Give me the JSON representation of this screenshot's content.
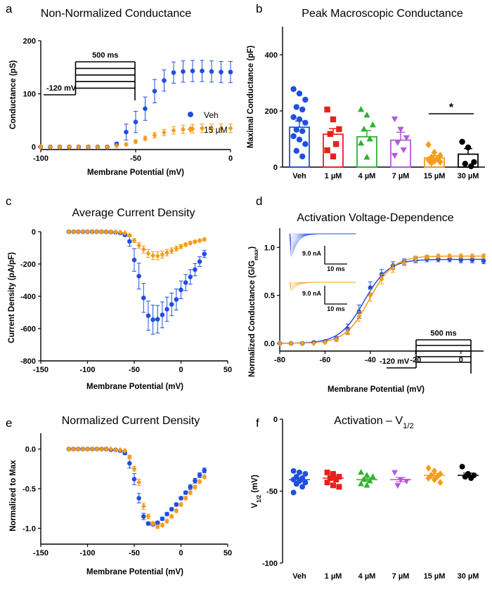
{
  "colors": {
    "veh": "#1f4fe0",
    "d15": "#f59c1a",
    "d1": "#e8201c",
    "d4": "#2db32d",
    "d7": "#b25adb",
    "d30": "#000000",
    "axis": "#000000"
  },
  "chart_data": [
    {
      "id": "a",
      "panel_label": "a",
      "type": "scatter",
      "title": "Non-Normalized Conductance",
      "xlabel": "Membrane Potential (mV)",
      "ylabel": "Conductance (pS)",
      "xlim": [
        -100,
        0
      ],
      "ylim": [
        -5,
        200
      ],
      "xticks": [
        -100,
        -50,
        0
      ],
      "yticks": [
        0,
        100,
        200
      ],
      "legend": {
        "position": "right",
        "entries": [
          "Veh",
          "15 µM"
        ]
      },
      "protocol": {
        "hold": "-120 mV",
        "dur": "500 ms"
      },
      "series": [
        {
          "name": "Veh",
          "color_key": "veh",
          "marker": "circle",
          "x": [
            -100,
            -95,
            -90,
            -85,
            -80,
            -75,
            -70,
            -65,
            -60,
            -55,
            -50,
            -45,
            -40,
            -35,
            -30,
            -25,
            -20,
            -15,
            -10,
            -5,
            0
          ],
          "y": [
            0,
            0,
            0,
            0,
            0,
            0,
            0,
            0,
            5,
            28,
            47,
            72,
            105,
            125,
            140,
            142,
            143,
            143,
            142,
            141,
            141
          ],
          "err": [
            0,
            0,
            0,
            0,
            0,
            0,
            0,
            0,
            4,
            15,
            20,
            22,
            22,
            20,
            20,
            20,
            20,
            20,
            20,
            20,
            20
          ]
        },
        {
          "name": "15 µM",
          "color_key": "d15",
          "marker": "diamond",
          "x": [
            -100,
            -95,
            -90,
            -85,
            -80,
            -75,
            -70,
            -65,
            -60,
            -55,
            -50,
            -45,
            -40,
            -35,
            -30,
            -25,
            -20,
            -15,
            -10,
            -5,
            0
          ],
          "y": [
            0,
            0,
            0,
            0,
            0,
            0,
            0,
            0,
            2,
            5,
            10,
            16,
            22,
            27,
            31,
            33,
            34,
            35,
            35,
            35,
            35
          ],
          "err": [
            0,
            0,
            0,
            0,
            0,
            0,
            0,
            0,
            1,
            2,
            3,
            4,
            5,
            6,
            7,
            8,
            8,
            8,
            8,
            8,
            8
          ]
        }
      ]
    },
    {
      "id": "b",
      "panel_label": "b",
      "type": "bar",
      "title": "Peak Macroscopic Conductance",
      "xlabel": "",
      "ylabel": "Maximal Conductance (pF)",
      "ylim": [
        0,
        500
      ],
      "yticks": [
        0,
        200,
        400
      ],
      "categories": [
        "Veh",
        "1 µM",
        "4 µM",
        "7 µM",
        "15 µM",
        "30 µM"
      ],
      "color_keys": [
        "veh",
        "d1",
        "d4",
        "d7",
        "d15",
        "d30"
      ],
      "markers": [
        "circle",
        "square",
        "triangle",
        "tri-down",
        "diamond",
        "circle"
      ],
      "values": [
        142,
        117,
        108,
        96,
        33,
        46
      ],
      "sem": [
        22,
        20,
        22,
        28,
        8,
        20
      ],
      "points": [
        [
          278,
          262,
          240,
          214,
          205,
          178,
          170,
          158,
          133,
          128,
          110,
          98,
          82,
          58,
          38
        ],
        [
          205,
          170,
          135,
          118,
          82,
          60,
          38
        ],
        [
          205,
          185,
          150,
          135,
          100,
          85,
          35
        ],
        [
          172,
          135,
          105,
          88,
          62,
          42
        ],
        [
          80,
          52,
          42,
          35,
          30,
          26,
          22,
          18,
          15
        ],
        [
          90,
          70,
          18,
          12,
          3
        ]
      ],
      "significance": {
        "from": 4,
        "to": 5,
        "label": "*"
      }
    },
    {
      "id": "c",
      "panel_label": "c",
      "type": "scatter",
      "title": "Average Current Density",
      "xlabel": "Membrane Potential (mV)",
      "ylabel": "Current Density (pA/pF)",
      "xlim": [
        -150,
        50
      ],
      "ylim": [
        -800,
        0
      ],
      "xticks": [
        -150,
        -100,
        -50,
        0,
        50
      ],
      "yticks": [
        0,
        -200,
        -400,
        -600,
        -800
      ],
      "series": [
        {
          "name": "Veh",
          "color_key": "veh",
          "marker": "circle",
          "x": [
            -120,
            -115,
            -110,
            -105,
            -100,
            -95,
            -90,
            -85,
            -80,
            -75,
            -70,
            -65,
            -60,
            -55,
            -50,
            -45,
            -40,
            -35,
            -30,
            -25,
            -20,
            -15,
            -10,
            -5,
            0,
            5,
            10,
            15,
            20,
            25
          ],
          "y": [
            0,
            0,
            0,
            0,
            0,
            0,
            0,
            0,
            -1,
            -2,
            -4,
            -8,
            -20,
            -60,
            -175,
            -275,
            -410,
            -520,
            -545,
            -542,
            -515,
            -480,
            -450,
            -420,
            -360,
            -315,
            -280,
            -235,
            -185,
            -138
          ],
          "err": [
            0,
            0,
            0,
            0,
            0,
            0,
            0,
            0,
            1,
            1,
            2,
            3,
            8,
            30,
            70,
            80,
            90,
            90,
            90,
            85,
            80,
            75,
            70,
            65,
            55,
            50,
            45,
            38,
            30,
            22
          ]
        },
        {
          "name": "15 µM",
          "color_key": "d15",
          "marker": "diamond",
          "x": [
            -120,
            -115,
            -110,
            -105,
            -100,
            -95,
            -90,
            -85,
            -80,
            -75,
            -70,
            -65,
            -60,
            -55,
            -50,
            -45,
            -40,
            -35,
            -30,
            -25,
            -20,
            -15,
            -10,
            -5,
            0,
            5,
            10,
            15,
            20,
            25
          ],
          "y": [
            0,
            0,
            0,
            0,
            0,
            0,
            0,
            0,
            -1,
            -1,
            -2,
            -3,
            -8,
            -22,
            -55,
            -85,
            -110,
            -135,
            -148,
            -150,
            -142,
            -130,
            -118,
            -105,
            -92,
            -80,
            -70,
            -62,
            -55,
            -48
          ],
          "err": [
            0,
            0,
            0,
            0,
            0,
            0,
            0,
            0,
            0,
            0,
            1,
            1,
            2,
            5,
            12,
            18,
            22,
            25,
            25,
            25,
            22,
            20,
            18,
            15,
            12,
            10,
            9,
            8,
            7,
            6
          ]
        }
      ]
    },
    {
      "id": "d",
      "panel_label": "d",
      "type": "scatter",
      "title": "Activation Voltage-Dependence",
      "xlabel": "Membrane Potential (mV)",
      "ylabel_main": "Normalized Conductance (G/G",
      "ylabel_sub": "max",
      "ylabel_end": ")",
      "xlim": [
        -80,
        10
      ],
      "ylim": [
        -0.08,
        1.2
      ],
      "xticks": [
        -80,
        -60,
        -40,
        -20,
        0
      ],
      "yticks": [
        0.0,
        0.5,
        1.0
      ],
      "inset": {
        "scale_nA": "9.0 nA",
        "scale_ms": "10 ms"
      },
      "protocol": {
        "hold": "-120 mV",
        "dur": "500 ms"
      },
      "series": [
        {
          "name": "Veh",
          "color_key": "veh",
          "marker": "circle",
          "x": [
            -80,
            -75,
            -70,
            -65,
            -60,
            -55,
            -50,
            -45,
            -40,
            -35,
            -30,
            -25,
            -20,
            -15,
            -10,
            -5,
            0,
            5,
            10
          ],
          "y": [
            0,
            0,
            0,
            0.01,
            0.02,
            0.05,
            0.15,
            0.33,
            0.58,
            0.72,
            0.81,
            0.85,
            0.87,
            0.88,
            0.88,
            0.88,
            0.87,
            0.87,
            0.86
          ],
          "err": [
            0,
            0,
            0,
            0,
            0.01,
            0.02,
            0.05,
            0.07,
            0.06,
            0.05,
            0.04,
            0.03,
            0.03,
            0.03,
            0.03,
            0.03,
            0.03,
            0.03,
            0.03
          ]
        },
        {
          "name": "15 µM",
          "color_key": "d15",
          "marker": "diamond",
          "x": [
            -80,
            -75,
            -70,
            -65,
            -60,
            -55,
            -50,
            -45,
            -40,
            -35,
            -30,
            -25,
            -20,
            -15,
            -10,
            -5,
            0,
            5,
            10
          ],
          "y": [
            0,
            0,
            0,
            0,
            0.01,
            0.04,
            0.12,
            0.28,
            0.5,
            0.67,
            0.78,
            0.84,
            0.88,
            0.9,
            0.91,
            0.91,
            0.91,
            0.91,
            0.91
          ],
          "err": [
            0,
            0,
            0,
            0,
            0.01,
            0.02,
            0.03,
            0.05,
            0.06,
            0.05,
            0.04,
            0.03,
            0.03,
            0.02,
            0.02,
            0.02,
            0.02,
            0.02,
            0.02
          ]
        }
      ]
    },
    {
      "id": "e",
      "panel_label": "e",
      "type": "scatter",
      "title": "Normalized Current Density",
      "xlabel": "Membrane Potential (mV)",
      "ylabel": "Normalized to Max",
      "xlim": [
        -150,
        50
      ],
      "ylim": [
        -1.2,
        0.2
      ],
      "xticks": [
        -150,
        -100,
        -50,
        0,
        50
      ],
      "yticks": [
        0.0,
        -0.5,
        -1.0
      ],
      "series": [
        {
          "name": "Veh",
          "color_key": "veh",
          "marker": "circle",
          "x": [
            -120,
            -115,
            -110,
            -105,
            -100,
            -95,
            -90,
            -85,
            -80,
            -75,
            -70,
            -65,
            -60,
            -55,
            -50,
            -45,
            -40,
            -35,
            -30,
            -25,
            -20,
            -15,
            -10,
            -5,
            0,
            5,
            10,
            15,
            20,
            25
          ],
          "y": [
            0,
            0,
            0,
            0,
            0,
            0,
            0,
            0,
            0,
            -0.01,
            -0.01,
            -0.02,
            -0.05,
            -0.18,
            -0.38,
            -0.62,
            -0.85,
            -0.94,
            -0.95,
            -0.93,
            -0.88,
            -0.82,
            -0.76,
            -0.7,
            -0.62,
            -0.55,
            -0.48,
            -0.4,
            -0.33,
            -0.27
          ],
          "err": [
            0,
            0,
            0,
            0,
            0,
            0,
            0,
            0,
            0,
            0,
            0,
            0.01,
            0.02,
            0.06,
            0.07,
            0.06,
            0.04,
            0.02,
            0.02,
            0.02,
            0.02,
            0.02,
            0.02,
            0.02,
            0.02,
            0.02,
            0.03,
            0.03,
            0.03,
            0.03
          ]
        },
        {
          "name": "15 µM",
          "color_key": "d15",
          "marker": "diamond",
          "x": [
            -120,
            -115,
            -110,
            -105,
            -100,
            -95,
            -90,
            -85,
            -80,
            -75,
            -70,
            -65,
            -60,
            -55,
            -50,
            -45,
            -40,
            -35,
            -30,
            -25,
            -20,
            -15,
            -10,
            -5,
            0,
            5,
            10,
            15,
            20,
            25
          ],
          "y": [
            0,
            0,
            0,
            0,
            0,
            0,
            0,
            0,
            0,
            0,
            -0.01,
            -0.01,
            -0.02,
            -0.1,
            -0.25,
            -0.42,
            -0.72,
            -0.85,
            -0.94,
            -0.98,
            -0.96,
            -0.91,
            -0.85,
            -0.78,
            -0.7,
            -0.62,
            -0.55,
            -0.48,
            -0.41,
            -0.35
          ],
          "err": [
            0,
            0,
            0,
            0,
            0,
            0,
            0,
            0,
            0,
            0,
            0,
            0,
            0.01,
            0.02,
            0.03,
            0.04,
            0.04,
            0.03,
            0.02,
            0.02,
            0.02,
            0.02,
            0.02,
            0.02,
            0.02,
            0.02,
            0.02,
            0.02,
            0.02,
            0.02
          ]
        }
      ]
    },
    {
      "id": "f",
      "panel_label": "f",
      "type": "scatter",
      "title_main": "Activation – V",
      "title_sub": "1/2",
      "ylabel_main": "V",
      "ylabel_sub": "1/2",
      "ylabel_end": " (mV)",
      "ylim": [
        -100,
        0
      ],
      "yticks": [
        0,
        -50,
        -100
      ],
      "categories": [
        "Veh",
        "1 µM",
        "4 µM",
        "7 µM",
        "15 µM",
        "30 µM"
      ],
      "color_keys": [
        "veh",
        "d1",
        "d4",
        "d7",
        "d15",
        "d30"
      ],
      "markers": [
        "circle",
        "square",
        "triangle",
        "tri-down",
        "diamond",
        "circle"
      ],
      "means": [
        -42,
        -41,
        -42,
        -42,
        -39,
        -39
      ],
      "sem": [
        1.2,
        1.0,
        1.0,
        1.5,
        1.3,
        1.5
      ],
      "points": [
        [
          -36,
          -37,
          -38,
          -40,
          -41,
          -42,
          -43,
          -44,
          -45,
          -47,
          -51
        ],
        [
          -37,
          -38,
          -40,
          -41,
          -42,
          -44,
          -46,
          -47
        ],
        [
          -37,
          -39,
          -40,
          -42,
          -43,
          -45,
          -46
        ],
        [
          -37,
          -42,
          -43,
          -46
        ],
        [
          -34,
          -36,
          -38,
          -39,
          -40,
          -41,
          -42,
          -44
        ],
        [
          -33,
          -38,
          -39,
          -40,
          -41
        ]
      ]
    }
  ]
}
